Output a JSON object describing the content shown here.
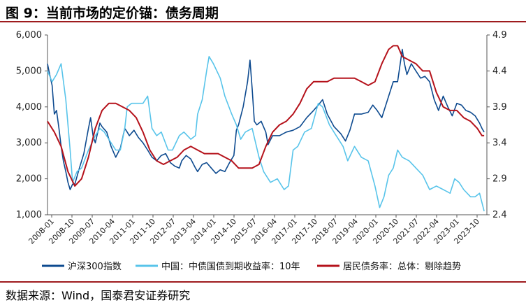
{
  "header": {
    "title": "图 9：当前市场的定价锚：债务周期"
  },
  "footer": {
    "source": "数据来源：Wind，国泰君安证券研究"
  },
  "chart_data": {
    "type": "line",
    "title": "图 9：当前市场的定价锚：债务周期",
    "x_tick_labels": [
      "2008-01",
      "2008-10",
      "2009-07",
      "2010-04",
      "2011-01",
      "2011-10",
      "2012-07",
      "2013-04",
      "2014-01",
      "2014-10",
      "2015-07",
      "2016-04",
      "2017-01",
      "2017-10",
      "2018-07",
      "2019-04",
      "2020-01",
      "2020-10",
      "2021-07",
      "2022-04",
      "2023-01",
      "2023-10"
    ],
    "x_range": [
      2008.0,
      2024.1
    ],
    "y_left": {
      "min": 1000,
      "max": 6000,
      "ticks": [
        1000,
        2000,
        3000,
        4000,
        5000,
        6000
      ],
      "tick_labels": [
        "1,000",
        "2,000",
        "3,000",
        "4,000",
        "5,000",
        "6,000"
      ]
    },
    "y_right": {
      "min": 2.4,
      "max": 4.9,
      "ticks": [
        2.4,
        2.9,
        3.4,
        3.9,
        4.4,
        4.9
      ],
      "tick_labels": [
        "2.4",
        "2.9",
        "3.4",
        "3.9",
        "4.4",
        "4.9"
      ]
    },
    "series": [
      {
        "name": "沪深300指数",
        "axis": "left",
        "color": "#0d4a8f",
        "x": [
          2008.0,
          2008.08,
          2008.17,
          2008.25,
          2008.33,
          2008.42,
          2008.5,
          2008.58,
          2008.67,
          2008.75,
          2008.83,
          2008.92,
          2009.0,
          2009.17,
          2009.33,
          2009.5,
          2009.58,
          2009.67,
          2009.75,
          2009.92,
          2010.0,
          2010.17,
          2010.33,
          2010.5,
          2010.67,
          2010.83,
          2010.92,
          2011.0,
          2011.17,
          2011.33,
          2011.5,
          2011.67,
          2011.83,
          2012.0,
          2012.17,
          2012.33,
          2012.5,
          2012.67,
          2012.83,
          2012.92,
          2013.08,
          2013.25,
          2013.42,
          2013.5,
          2013.67,
          2013.83,
          2014.0,
          2014.17,
          2014.33,
          2014.5,
          2014.67,
          2014.83,
          2014.92,
          2015.0,
          2015.17,
          2015.33,
          2015.42,
          2015.5,
          2015.58,
          2015.67,
          2015.83,
          2016.0,
          2016.08,
          2016.25,
          2016.5,
          2016.75,
          2017.0,
          2017.25,
          2017.5,
          2017.75,
          2017.92,
          2018.08,
          2018.25,
          2018.5,
          2018.75,
          2018.92,
          2019.08,
          2019.25,
          2019.5,
          2019.75,
          2019.92,
          2020.08,
          2020.25,
          2020.5,
          2020.67,
          2020.83,
          2021.0,
          2021.08,
          2021.17,
          2021.33,
          2021.5,
          2021.67,
          2021.83,
          2022.0,
          2022.17,
          2022.33,
          2022.5,
          2022.67,
          2022.83,
          2023.0,
          2023.17,
          2023.33,
          2023.5,
          2023.67,
          2023.83,
          2023.92,
          2024.0
        ],
        "values": [
          5200,
          4900,
          4600,
          3800,
          3900,
          3400,
          2900,
          2500,
          2200,
          1900,
          1700,
          1850,
          1850,
          2300,
          2700,
          3400,
          3700,
          3200,
          3000,
          3550,
          3450,
          3300,
          2900,
          2600,
          2850,
          3400,
          3300,
          3200,
          3350,
          3150,
          3000,
          2800,
          2600,
          2500,
          2650,
          2700,
          2450,
          2350,
          2300,
          2500,
          2650,
          2550,
          2300,
          2200,
          2400,
          2450,
          2300,
          2150,
          2250,
          2200,
          2450,
          2650,
          3350,
          3500,
          4000,
          4700,
          5300,
          4500,
          3600,
          3500,
          3600,
          3300,
          2950,
          3200,
          3200,
          3300,
          3350,
          3450,
          3700,
          3900,
          4050,
          4200,
          3800,
          3450,
          3250,
          3050,
          3350,
          3800,
          3800,
          3850,
          4050,
          3900,
          3700,
          4300,
          4700,
          4700,
          5600,
          5200,
          4900,
          5200,
          5000,
          4800,
          4850,
          4700,
          4200,
          3900,
          4300,
          4000,
          3750,
          4100,
          4050,
          3900,
          3850,
          3750,
          3550,
          3400,
          3300
        ]
      },
      {
        "name": "中国：中债国债到期收益率：10年",
        "axis": "right",
        "color": "#58c4ea",
        "x": [
          2008.0,
          2008.17,
          2008.33,
          2008.5,
          2008.67,
          2008.83,
          2008.92,
          2009.08,
          2009.25,
          2009.5,
          2009.75,
          2009.92,
          2010.08,
          2010.33,
          2010.5,
          2010.67,
          2010.83,
          2010.92,
          2011.08,
          2011.33,
          2011.5,
          2011.67,
          2011.83,
          2012.0,
          2012.17,
          2012.42,
          2012.58,
          2012.83,
          2013.0,
          2013.25,
          2013.42,
          2013.5,
          2013.67,
          2013.83,
          2013.92,
          2014.08,
          2014.33,
          2014.5,
          2014.75,
          2014.92,
          2015.08,
          2015.25,
          2015.5,
          2015.75,
          2015.92,
          2016.17,
          2016.42,
          2016.67,
          2016.83,
          2017.0,
          2017.17,
          2017.42,
          2017.67,
          2017.92,
          2018.08,
          2018.33,
          2018.58,
          2018.83,
          2019.0,
          2019.25,
          2019.5,
          2019.75,
          2020.0,
          2020.17,
          2020.33,
          2020.5,
          2020.67,
          2020.83,
          2021.0,
          2021.25,
          2021.5,
          2021.75,
          2022.0,
          2022.25,
          2022.5,
          2022.75,
          2022.92,
          2023.08,
          2023.25,
          2023.5,
          2023.67,
          2023.83,
          2024.0
        ],
        "values": [
          4.4,
          4.25,
          4.35,
          4.5,
          4.0,
          3.3,
          2.85,
          3.0,
          3.05,
          3.3,
          3.5,
          3.6,
          3.55,
          3.4,
          3.3,
          3.3,
          3.6,
          3.9,
          3.95,
          3.95,
          3.95,
          4.05,
          3.6,
          3.5,
          3.55,
          3.3,
          3.3,
          3.5,
          3.55,
          3.45,
          3.5,
          3.8,
          4.0,
          4.4,
          4.6,
          4.5,
          4.3,
          4.05,
          3.8,
          3.65,
          3.45,
          3.55,
          3.6,
          3.2,
          3.0,
          2.85,
          2.9,
          2.75,
          2.8,
          3.3,
          3.35,
          3.55,
          3.6,
          3.95,
          3.9,
          3.65,
          3.5,
          3.35,
          3.15,
          3.35,
          3.2,
          3.15,
          2.8,
          2.5,
          2.65,
          2.95,
          3.05,
          3.3,
          3.2,
          3.15,
          3.05,
          2.95,
          2.75,
          2.8,
          2.75,
          2.7,
          2.9,
          2.85,
          2.75,
          2.65,
          2.65,
          2.7,
          2.45
        ]
      },
      {
        "name": "居民债务率：总体：剔除趋势",
        "axis": "right",
        "color": "#b5121b",
        "x": [
          2008.0,
          2008.25,
          2008.5,
          2008.75,
          2009.0,
          2009.25,
          2009.5,
          2009.75,
          2010.0,
          2010.25,
          2010.5,
          2010.75,
          2011.0,
          2011.25,
          2011.5,
          2011.75,
          2012.0,
          2012.25,
          2012.5,
          2012.75,
          2013.0,
          2013.25,
          2013.5,
          2013.75,
          2014.0,
          2014.25,
          2014.5,
          2014.75,
          2015.0,
          2015.25,
          2015.5,
          2015.75,
          2016.0,
          2016.25,
          2016.5,
          2016.75,
          2017.0,
          2017.25,
          2017.5,
          2017.75,
          2018.0,
          2018.25,
          2018.5,
          2018.75,
          2019.0,
          2019.25,
          2019.5,
          2019.75,
          2020.0,
          2020.25,
          2020.5,
          2020.67,
          2020.83,
          2021.0,
          2021.25,
          2021.5,
          2021.75,
          2022.0,
          2022.25,
          2022.5,
          2022.75,
          2023.0,
          2023.25,
          2023.5,
          2023.75,
          2023.92,
          2024.0
        ],
        "values": [
          3.7,
          3.55,
          3.35,
          3.0,
          2.8,
          2.9,
          3.2,
          3.6,
          3.85,
          3.95,
          3.95,
          3.9,
          3.85,
          3.75,
          3.55,
          3.3,
          3.15,
          3.1,
          3.15,
          3.2,
          3.3,
          3.35,
          3.3,
          3.25,
          3.25,
          3.25,
          3.2,
          3.15,
          3.05,
          3.05,
          3.05,
          3.1,
          3.35,
          3.55,
          3.65,
          3.7,
          3.8,
          3.95,
          4.15,
          4.25,
          4.25,
          4.25,
          4.3,
          4.3,
          4.3,
          4.3,
          4.25,
          4.2,
          4.25,
          4.5,
          4.7,
          4.75,
          4.75,
          4.6,
          4.55,
          4.5,
          4.4,
          4.4,
          4.1,
          3.9,
          3.85,
          3.85,
          3.75,
          3.7,
          3.6,
          3.5,
          3.5
        ]
      }
    ]
  }
}
